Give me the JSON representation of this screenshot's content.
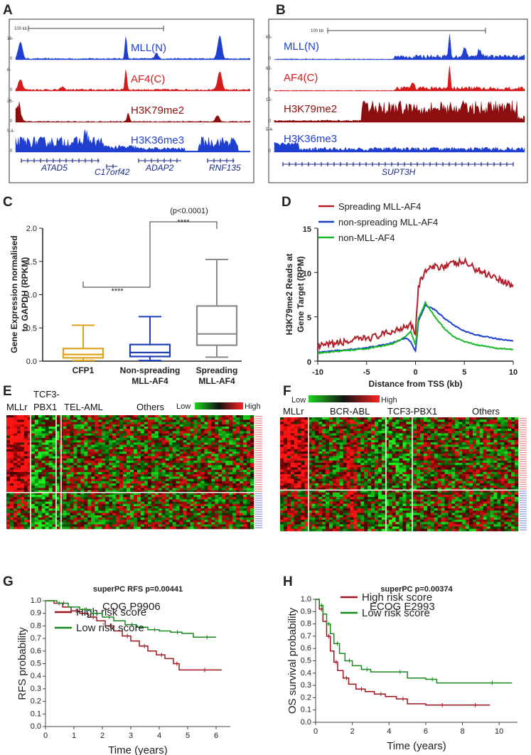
{
  "panels": {
    "A": {
      "label": "A",
      "scale": "100 kb",
      "tracks": [
        {
          "name": "MLL(N)",
          "max": "16-",
          "min": "0",
          "color": "#1f3fd0"
        },
        {
          "name": "AF4(C)",
          "max": "6-",
          "min": "0",
          "color": "#d41a1a"
        },
        {
          "name": "H3K79me2",
          "max": "25-",
          "min": "0",
          "color": "#8c0e0e"
        },
        {
          "name": "H3K36me3",
          "max": "5.4-",
          "min": "0",
          "color": "#1f3fd0"
        }
      ],
      "genes": [
        "ATAD5",
        "C17orf42",
        "ADAP2",
        "RNF135"
      ]
    },
    "B": {
      "label": "B",
      "scale": "100 kb",
      "tracks": [
        {
          "name": "MLL(N)",
          "max": "65-",
          "min": "0",
          "color": "#1f3fd0"
        },
        {
          "name": "AF4(C)",
          "max": "62-",
          "min": "0",
          "color": "#d41a1a"
        },
        {
          "name": "H3K79me2",
          "max": "15-",
          "min": "0",
          "color": "#8c0e0e"
        },
        {
          "name": "H3K36me3",
          "max": "5.4-",
          "min": "0",
          "color": "#1f3fd0"
        }
      ],
      "genes": [
        "SUPT3H"
      ]
    },
    "C": {
      "label": "C",
      "pvalue": "(p<0.0001)",
      "sig1": "****",
      "sig2": "****"
    },
    "D": {
      "label": "D"
    },
    "E": {
      "label": "E",
      "groups": [
        "MLLr",
        "TCF3-",
        "PBX1",
        "TEL-AML",
        "Others"
      ],
      "low": "Low",
      "high": "High"
    },
    "F": {
      "label": "F",
      "groups": [
        "MLLr",
        "BCR-ABL",
        "TCF3-PBX1",
        "Others"
      ],
      "low": "Low",
      "high": "High"
    },
    "G": {
      "label": "G"
    },
    "H": {
      "label": "H"
    }
  },
  "chart_data": [
    {
      "id": "C",
      "type": "box",
      "title": "",
      "ylabel": "Gene Expression normalised to GAPDH (RPKM)",
      "categories": [
        "CFP1",
        "Non-spreading MLL-AF4",
        "Spreading MLL-AF4"
      ],
      "category_lines": [
        [
          "CFP1"
        ],
        [
          "Non-spreading",
          "MLL-AF4"
        ],
        [
          "Spreading",
          "MLL-AF4"
        ]
      ],
      "colors": [
        "#e0a21a",
        "#1c3fb8",
        "#8a8a8a"
      ],
      "ylim": [
        0,
        2.0
      ],
      "yticks": [
        "0.0",
        "0.5",
        "1.0",
        "1.5",
        "2.0"
      ],
      "boxes": [
        {
          "min": 0.01,
          "q1": 0.05,
          "median": 0.1,
          "q3": 0.19,
          "max": 0.54
        },
        {
          "min": 0.01,
          "q1": 0.07,
          "median": 0.13,
          "q3": 0.25,
          "max": 0.67
        },
        {
          "min": 0.06,
          "q1": 0.24,
          "median": 0.41,
          "q3": 0.83,
          "max": 1.53
        }
      ]
    },
    {
      "id": "D",
      "type": "line",
      "xlabel": "Distance from TSS (kb)",
      "ylabel": "H3K79me2 Reads at Gene Target (RPM)",
      "xlim": [
        -10,
        10
      ],
      "ylim": [
        0,
        15
      ],
      "xticks": [
        "-10",
        "-5",
        "0",
        "5",
        "10"
      ],
      "yticks": [
        "0",
        "5",
        "10",
        "15"
      ],
      "x": [
        -10,
        -9,
        -8,
        -7,
        -6,
        -5,
        -4,
        -3,
        -2,
        -1,
        -0.5,
        0,
        0.3,
        1,
        2,
        3,
        4,
        5,
        6,
        7,
        8,
        9,
        10
      ],
      "series": [
        {
          "name": "Spreading MLL-AF4",
          "color": "#b21f2a",
          "values": [
            1.6,
            1.8,
            2.0,
            2.2,
            2.4,
            2.6,
            2.8,
            3.1,
            3.5,
            4.0,
            4.3,
            3.2,
            8.5,
            10.2,
            10.6,
            10.8,
            11.0,
            11.2,
            10.5,
            10.0,
            9.6,
            9.0,
            8.5
          ]
        },
        {
          "name": "non-spreading MLL-AF4",
          "color": "#1c3fd0",
          "values": [
            1.0,
            1.1,
            1.2,
            1.3,
            1.4,
            1.5,
            1.7,
            1.9,
            2.2,
            2.6,
            2.2,
            1.1,
            4.5,
            6.3,
            5.8,
            4.8,
            4.0,
            3.4,
            3.0,
            2.8,
            2.6,
            2.4,
            2.3
          ]
        },
        {
          "name": "non-MLL-AF4",
          "color": "#19b82a",
          "values": [
            0.9,
            1.0,
            1.1,
            1.2,
            1.3,
            1.4,
            1.6,
            1.8,
            2.1,
            2.8,
            3.4,
            1.8,
            4.8,
            6.6,
            5.0,
            3.6,
            2.7,
            2.2,
            1.9,
            1.7,
            1.5,
            1.4,
            1.3
          ]
        }
      ]
    },
    {
      "id": "G",
      "type": "line",
      "title": "superPC RFS p=0.00441",
      "subtitle": "COG P9906",
      "xlabel": "Time (years)",
      "ylabel": "RFS probability",
      "xlim": [
        0,
        6.5
      ],
      "ylim": [
        0,
        1.0
      ],
      "xticks": [
        "0",
        "1",
        "2",
        "3",
        "4",
        "5",
        "6"
      ],
      "yticks": [
        "0.0",
        "0.1",
        "0.2",
        "0.3",
        "0.4",
        "0.5",
        "0.6",
        "0.7",
        "0.8",
        "0.9",
        "1.0"
      ],
      "series": [
        {
          "name": "High risk score",
          "color": "#a0151d",
          "x": [
            0,
            0.3,
            0.6,
            0.9,
            1.2,
            1.5,
            1.8,
            2.1,
            2.4,
            2.7,
            3.0,
            3.3,
            3.6,
            3.9,
            4.2,
            4.5,
            4.7,
            6.2
          ],
          "values": [
            1.0,
            0.98,
            0.95,
            0.92,
            0.9,
            0.87,
            0.84,
            0.8,
            0.76,
            0.72,
            0.68,
            0.64,
            0.6,
            0.57,
            0.54,
            0.5,
            0.45,
            0.45
          ]
        },
        {
          "name": "Low risk score",
          "color": "#178a1e",
          "x": [
            0,
            0.4,
            0.8,
            1.2,
            1.6,
            2.0,
            2.4,
            2.8,
            3.2,
            3.6,
            4.0,
            4.4,
            4.8,
            5.2,
            6.0
          ],
          "values": [
            1.0,
            0.98,
            0.95,
            0.93,
            0.9,
            0.87,
            0.84,
            0.81,
            0.79,
            0.77,
            0.76,
            0.75,
            0.74,
            0.71,
            0.71
          ]
        }
      ]
    },
    {
      "id": "H",
      "type": "line",
      "title": "superPC p=0.00374",
      "subtitle": "ECOG E2993",
      "xlabel": "Time (years)",
      "ylabel": "OS survival probability",
      "xlim": [
        0,
        11
      ],
      "ylim": [
        0,
        1.0
      ],
      "xticks": [
        "0",
        "2",
        "4",
        "6",
        "8",
        "10"
      ],
      "yticks": [
        "0.0",
        "0.1",
        "0.2",
        "0.3",
        "0.4",
        "0.5",
        "0.6",
        "0.7",
        "0.8",
        "0.9",
        "1.0"
      ],
      "series": [
        {
          "name": "High risk score",
          "color": "#a0151d",
          "x": [
            0,
            0.2,
            0.4,
            0.6,
            0.8,
            1.0,
            1.2,
            1.5,
            1.8,
            2.2,
            2.7,
            3.2,
            3.8,
            4.4,
            5.0,
            6.0,
            7.5,
            9.5
          ],
          "values": [
            1.0,
            0.92,
            0.82,
            0.7,
            0.58,
            0.49,
            0.42,
            0.36,
            0.31,
            0.27,
            0.25,
            0.23,
            0.21,
            0.19,
            0.15,
            0.14,
            0.14,
            0.14
          ]
        },
        {
          "name": "Low risk score",
          "color": "#178a1e",
          "x": [
            0,
            0.2,
            0.4,
            0.6,
            0.8,
            1.0,
            1.3,
            1.6,
            2.0,
            2.5,
            3.0,
            4.0,
            5.0,
            6.0,
            6.6,
            8.0,
            10.7
          ],
          "values": [
            1.0,
            0.95,
            0.88,
            0.8,
            0.72,
            0.64,
            0.56,
            0.5,
            0.46,
            0.43,
            0.41,
            0.41,
            0.36,
            0.35,
            0.32,
            0.32,
            0.32
          ]
        }
      ]
    }
  ]
}
